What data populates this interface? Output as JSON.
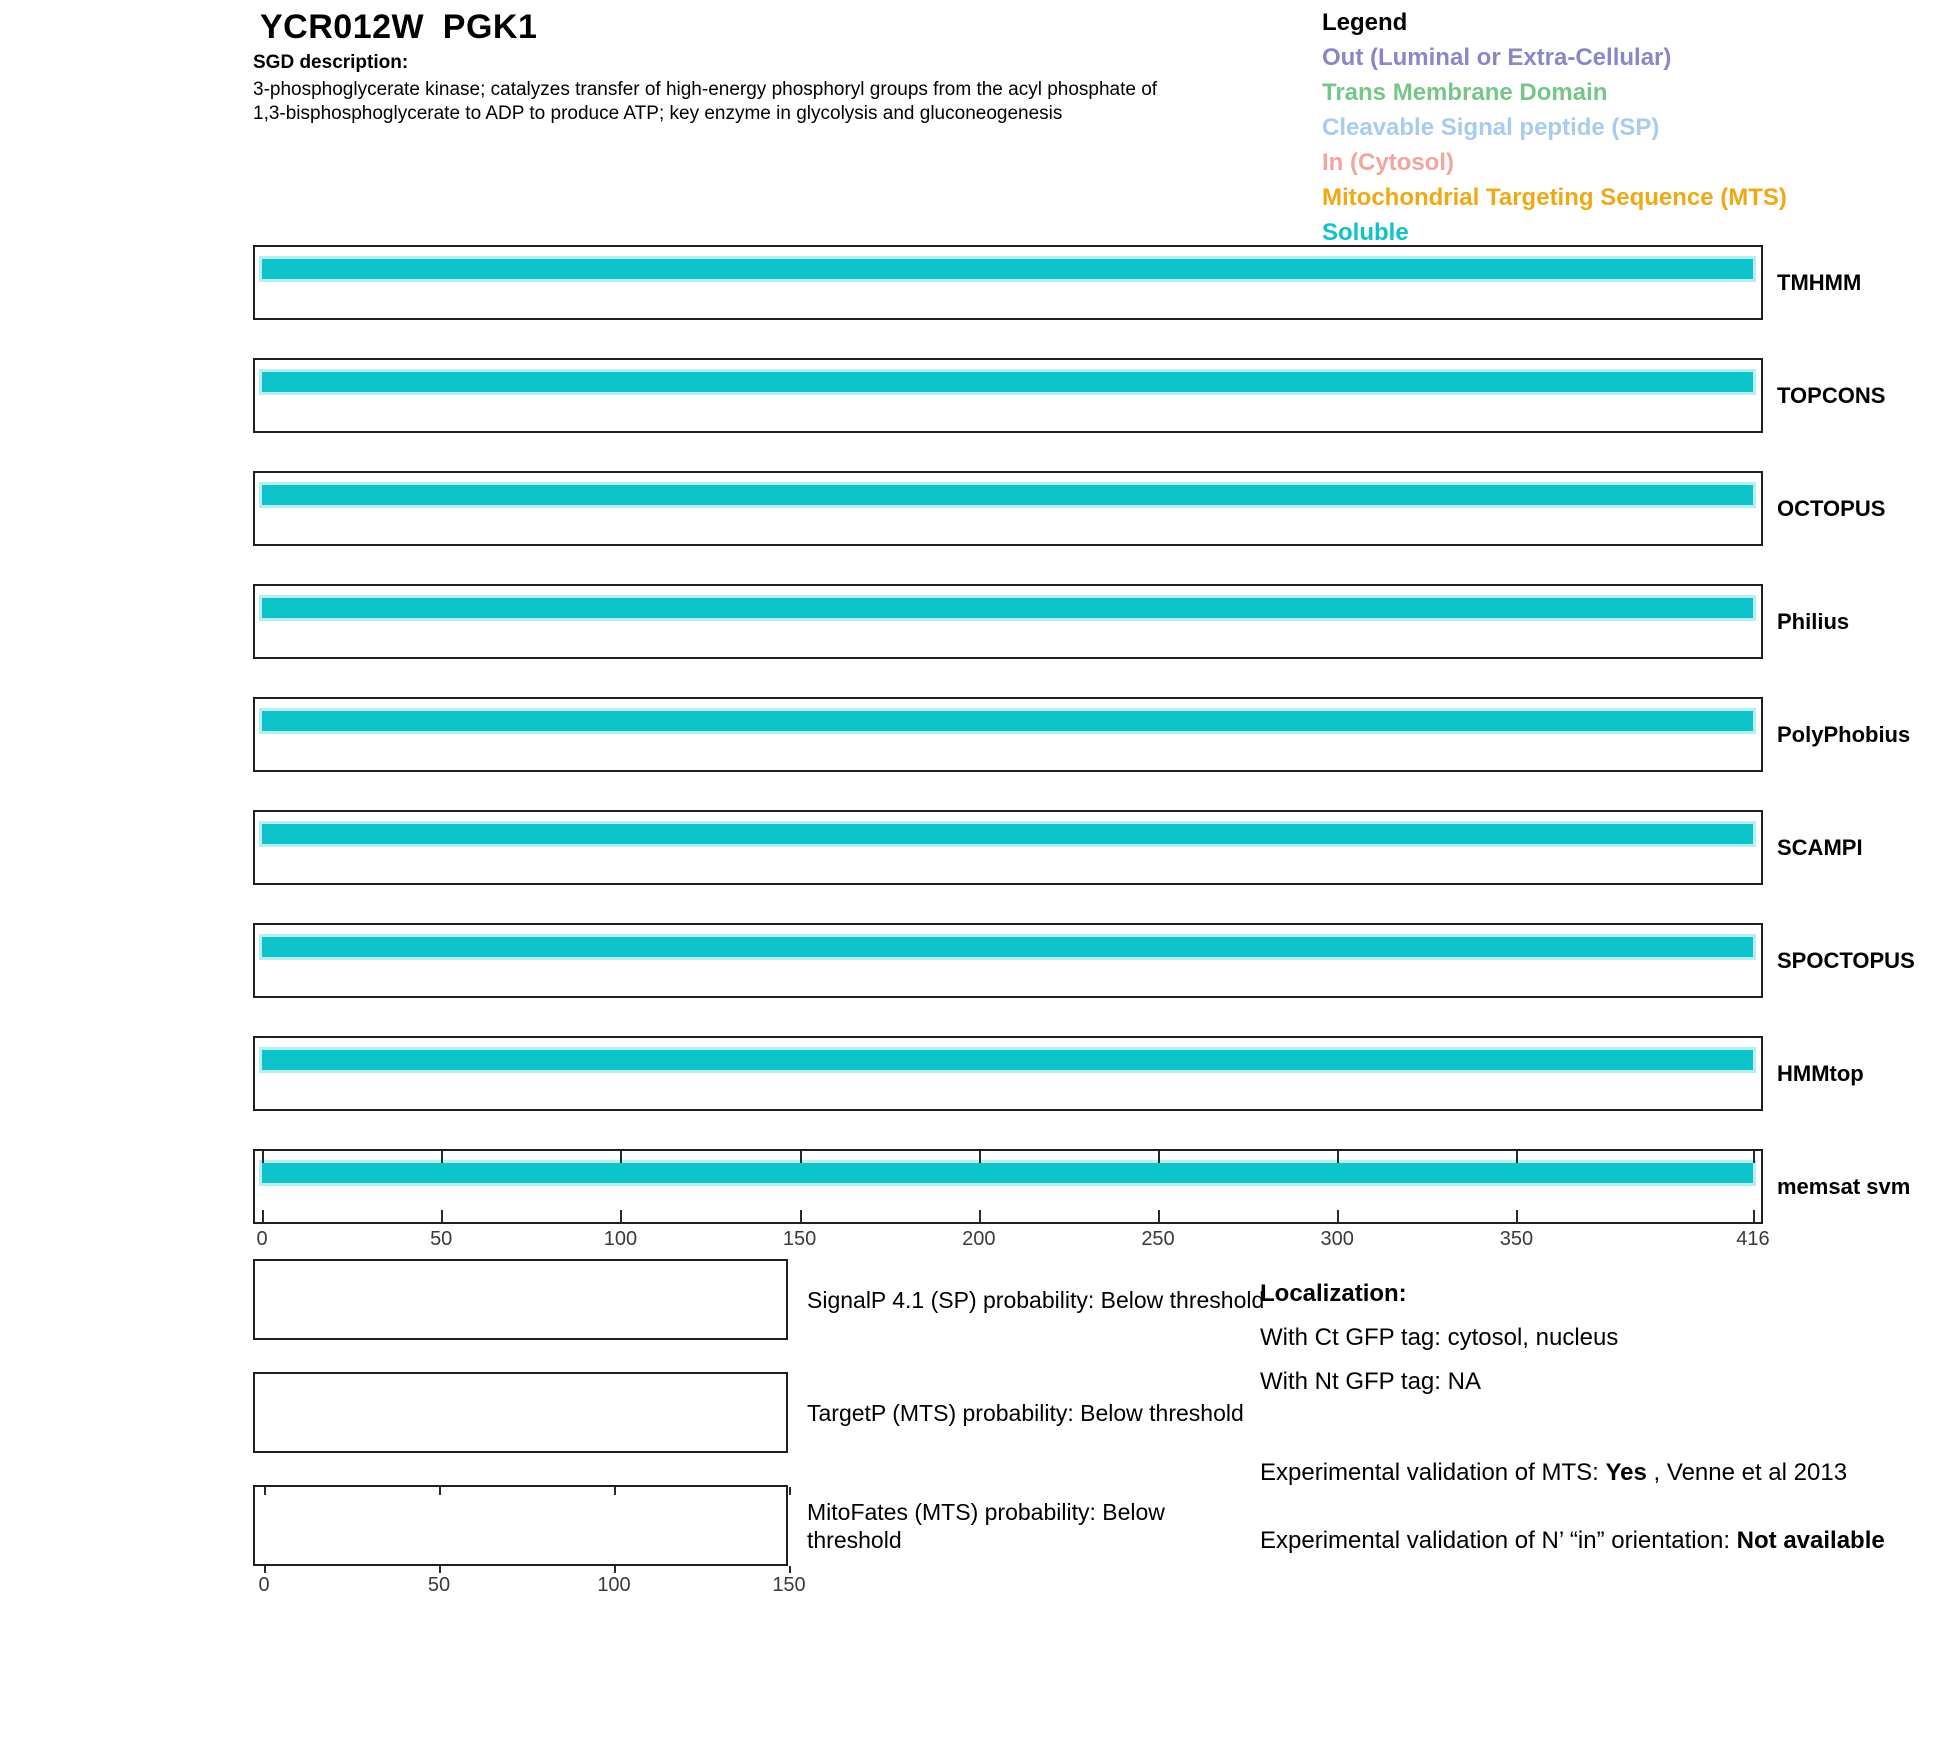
{
  "header": {
    "gene": "YCR012W",
    "protein": "PGK1",
    "sgd_label": "SGD description:",
    "description_line1": "3-phosphoglycerate kinase; catalyzes transfer of high-energy phosphoryl groups from the acyl phosphate of",
    "description_line2": "1,3-bisphosphoglycerate to ADP to produce ATP; key enzyme in glycolysis and gluconeogenesis"
  },
  "legend": {
    "title": "Legend",
    "items": [
      {
        "label": "Out (Luminal or Extra-Cellular)",
        "color": "#8a86c8"
      },
      {
        "label": "Trans Membrane Domain",
        "color": "#77c689"
      },
      {
        "label": "Cleavable Signal peptide (SP)",
        "color": "#a9cbf0"
      },
      {
        "label": "In (Cytosol)",
        "color": "#f2a49f"
      },
      {
        "label": "Mitochondrial Targeting Sequence (MTS)",
        "color": "#f0a813"
      },
      {
        "label": "Soluble",
        "color": "#0cc4c9"
      }
    ]
  },
  "tracks": [
    {
      "label": "TMHMM",
      "segment": {
        "start": 1,
        "end": 416,
        "class": "Soluble"
      }
    },
    {
      "label": "TOPCONS",
      "segment": {
        "start": 1,
        "end": 416,
        "class": "Soluble"
      }
    },
    {
      "label": "OCTOPUS",
      "segment": {
        "start": 1,
        "end": 416,
        "class": "Soluble"
      }
    },
    {
      "label": "Philius",
      "segment": {
        "start": 1,
        "end": 416,
        "class": "Soluble"
      }
    },
    {
      "label": "PolyPhobius",
      "segment": {
        "start": 1,
        "end": 416,
        "class": "Soluble"
      }
    },
    {
      "label": "SCAMPI",
      "segment": {
        "start": 1,
        "end": 416,
        "class": "Soluble"
      }
    },
    {
      "label": "SPOCTOPUS",
      "segment": {
        "start": 1,
        "end": 416,
        "class": "Soluble"
      }
    },
    {
      "label": "HMMtop",
      "segment": {
        "start": 1,
        "end": 416,
        "class": "Soluble"
      }
    },
    {
      "label": "memsat svm",
      "segment": {
        "start": 1,
        "end": 416,
        "class": "Soluble"
      },
      "show_ticks": true
    }
  ],
  "main_axis": {
    "min": 0,
    "max": 416,
    "ticks": [
      0,
      50,
      100,
      150,
      200,
      250,
      300,
      350,
      416
    ]
  },
  "probability_plots": [
    {
      "label": "SignalP 4.1 (SP) probability: Below threshold"
    },
    {
      "label": "TargetP (MTS) probability: Below threshold"
    },
    {
      "label": "MitoFates (MTS) probability: Below threshold",
      "show_ticks": true
    }
  ],
  "mini_axis": {
    "min": 0,
    "max": 150,
    "ticks": [
      0,
      50,
      100,
      150
    ]
  },
  "annotations": {
    "localization_title": "Localization:",
    "ct_line": "With Ct GFP tag: cytosol, nucleus",
    "nt_line": "With Nt GFP tag: NA",
    "mts_prefix": "Experimental validation of MTS: ",
    "mts_value": "Yes",
    "mts_suffix": " , Venne et al 2013",
    "orientation_prefix": "Experimental validation of N’ “in” orientation: ",
    "orientation_value": "Not available"
  },
  "colors": {
    "soluble": "#0cc4c9",
    "soluble_halo": "#b7eeee",
    "box_border": "#1f1f1f"
  },
  "chart_data": [
    {
      "type": "bar",
      "subtype": "horizontal-topology-span-tracks",
      "title": "Membrane topology predictions for YCR012W PGK1",
      "categories": [
        "TMHMM",
        "TOPCONS",
        "OCTOPUS",
        "Philius",
        "PolyPhobius",
        "SCAMPI",
        "SPOCTOPUS",
        "HMMtop",
        "memsat svm"
      ],
      "series": [
        {
          "name": "Soluble",
          "color": "#0cc4c9",
          "spans_by_category": [
            [
              1,
              416
            ],
            [
              1,
              416
            ],
            [
              1,
              416
            ],
            [
              1,
              416
            ],
            [
              1,
              416
            ],
            [
              1,
              416
            ],
            [
              1,
              416
            ],
            [
              1,
              416
            ],
            [
              1,
              416
            ]
          ]
        }
      ],
      "xlim": [
        0,
        416
      ],
      "xticks": [
        0,
        50,
        100,
        150,
        200,
        250,
        300,
        350,
        416
      ],
      "grid": false,
      "legend_position": "top-right",
      "legend_entries": [
        "Out (Luminal or Extra-Cellular)",
        "Trans Membrane Domain",
        "Cleavable Signal peptide (SP)",
        "In (Cytosol)",
        "Mitochondrial Targeting Sequence (MTS)",
        "Soluble"
      ]
    },
    {
      "type": "line",
      "subtype": "probability-tracks-empty",
      "title": "Targeting-signal probabilities",
      "plots": [
        {
          "label": "SignalP 4.1 (SP) probability: Below threshold",
          "values": "none plotted (below threshold)"
        },
        {
          "label": "TargetP (MTS) probability: Below threshold",
          "values": "none plotted (below threshold)"
        },
        {
          "label": "MitoFates (MTS) probability: Below threshold",
          "values": "none plotted (below threshold)"
        }
      ],
      "xlim": [
        0,
        150
      ],
      "xticks": [
        0,
        50,
        100,
        150
      ],
      "grid": false
    }
  ]
}
